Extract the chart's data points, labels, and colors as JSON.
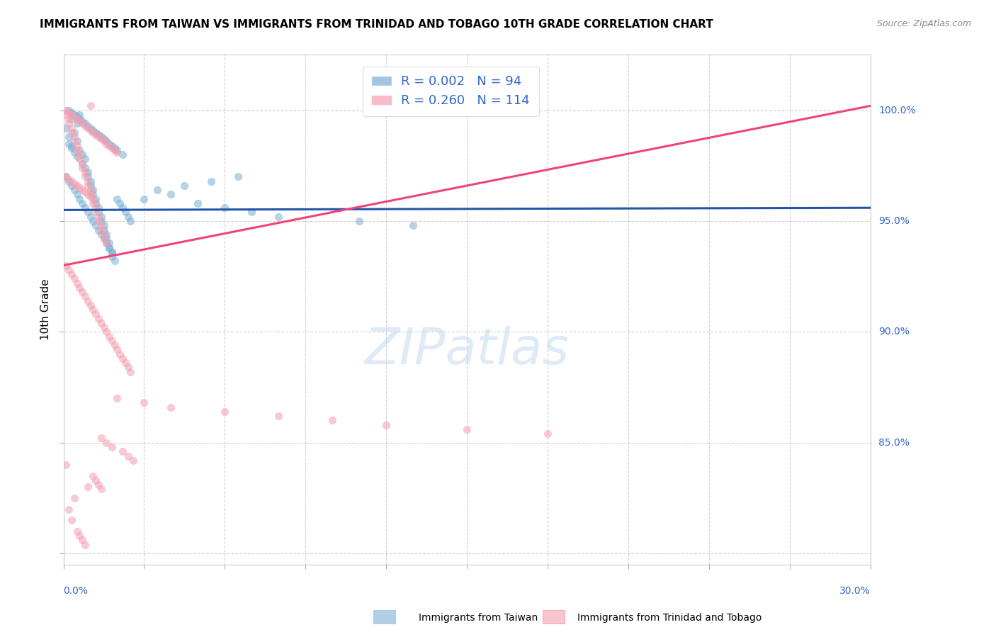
{
  "title": "IMMIGRANTS FROM TAIWAN VS IMMIGRANTS FROM TRINIDAD AND TOBAGO 10TH GRADE CORRELATION CHART",
  "source": "Source: ZipAtlas.com",
  "ylabel": "10th Grade",
  "xlim": [
    0.0,
    0.3
  ],
  "ylim": [
    0.795,
    1.025
  ],
  "taiwan_color": "#7BAFD4",
  "trinidad_color": "#F4A0B0",
  "taiwan_R": 0.002,
  "taiwan_N": 94,
  "trinidad_R": 0.26,
  "trinidad_N": 114,
  "taiwan_line_color": "#2255AA",
  "trinidad_line_color": "#EE4477",
  "watermark": "ZIPatlas",
  "background_color": "#FFFFFF",
  "taiwan_scatter_x": [
    0.001,
    0.002,
    0.003,
    0.003,
    0.004,
    0.005,
    0.005,
    0.006,
    0.006,
    0.007,
    0.007,
    0.008,
    0.008,
    0.009,
    0.009,
    0.01,
    0.01,
    0.011,
    0.011,
    0.012,
    0.012,
    0.013,
    0.013,
    0.014,
    0.014,
    0.015,
    0.015,
    0.016,
    0.016,
    0.017,
    0.017,
    0.018,
    0.018,
    0.019,
    0.02,
    0.021,
    0.022,
    0.023,
    0.024,
    0.025,
    0.002,
    0.003,
    0.004,
    0.005,
    0.006,
    0.007,
    0.008,
    0.009,
    0.01,
    0.011,
    0.012,
    0.013,
    0.014,
    0.015,
    0.016,
    0.017,
    0.018,
    0.019,
    0.02,
    0.022,
    0.001,
    0.002,
    0.003,
    0.004,
    0.005,
    0.006,
    0.007,
    0.008,
    0.009,
    0.01,
    0.011,
    0.012,
    0.013,
    0.014,
    0.015,
    0.016,
    0.017,
    0.018,
    0.03,
    0.04,
    0.05,
    0.06,
    0.07,
    0.08,
    0.035,
    0.045,
    0.055,
    0.065,
    0.11,
    0.13,
    0.002,
    0.003,
    0.004,
    0.005
  ],
  "taiwan_scatter_y": [
    0.992,
    0.988,
    0.996,
    0.984,
    0.99,
    0.986,
    0.994,
    0.982,
    0.998,
    0.98,
    0.976,
    0.978,
    0.974,
    0.972,
    0.97,
    0.968,
    0.966,
    0.964,
    0.962,
    0.96,
    0.958,
    0.956,
    0.954,
    0.952,
    0.95,
    0.948,
    0.946,
    0.944,
    0.942,
    0.94,
    0.938,
    0.936,
    0.934,
    0.932,
    0.96,
    0.958,
    0.956,
    0.954,
    0.952,
    0.95,
    1.0,
    0.999,
    0.998,
    0.997,
    0.996,
    0.995,
    0.994,
    0.993,
    0.992,
    0.991,
    0.99,
    0.989,
    0.988,
    0.987,
    0.986,
    0.985,
    0.984,
    0.983,
    0.982,
    0.98,
    0.97,
    0.968,
    0.966,
    0.964,
    0.962,
    0.96,
    0.958,
    0.956,
    0.954,
    0.952,
    0.95,
    0.948,
    0.946,
    0.944,
    0.942,
    0.94,
    0.938,
    0.936,
    0.96,
    0.962,
    0.958,
    0.956,
    0.954,
    0.952,
    0.964,
    0.966,
    0.968,
    0.97,
    0.95,
    0.948,
    0.985,
    0.983,
    0.981,
    0.979
  ],
  "trinidad_scatter_x": [
    0.001,
    0.002,
    0.002,
    0.003,
    0.003,
    0.004,
    0.004,
    0.005,
    0.005,
    0.006,
    0.006,
    0.007,
    0.007,
    0.008,
    0.008,
    0.009,
    0.009,
    0.01,
    0.01,
    0.011,
    0.011,
    0.012,
    0.012,
    0.013,
    0.013,
    0.014,
    0.014,
    0.015,
    0.015,
    0.016,
    0.001,
    0.002,
    0.003,
    0.004,
    0.005,
    0.006,
    0.007,
    0.008,
    0.009,
    0.01,
    0.011,
    0.012,
    0.013,
    0.014,
    0.015,
    0.016,
    0.017,
    0.018,
    0.019,
    0.02,
    0.001,
    0.002,
    0.003,
    0.004,
    0.005,
    0.006,
    0.007,
    0.008,
    0.009,
    0.01,
    0.001,
    0.002,
    0.003,
    0.004,
    0.005,
    0.006,
    0.007,
    0.008,
    0.009,
    0.01,
    0.011,
    0.012,
    0.013,
    0.014,
    0.015,
    0.016,
    0.017,
    0.018,
    0.019,
    0.02,
    0.021,
    0.022,
    0.023,
    0.024,
    0.025,
    0.02,
    0.03,
    0.04,
    0.06,
    0.08,
    0.1,
    0.12,
    0.15,
    0.18,
    0.014,
    0.016,
    0.018,
    0.022,
    0.024,
    0.026,
    0.001,
    0.002,
    0.003,
    0.004,
    0.005,
    0.006,
    0.007,
    0.008,
    0.009,
    0.01,
    0.011,
    0.012,
    0.013,
    0.014
  ],
  "trinidad_scatter_y": [
    0.998,
    0.996,
    0.994,
    0.992,
    0.99,
    0.988,
    0.986,
    0.984,
    0.982,
    0.98,
    0.978,
    0.976,
    0.974,
    0.972,
    0.97,
    0.968,
    0.966,
    0.964,
    0.962,
    0.96,
    0.958,
    0.956,
    0.954,
    0.952,
    0.95,
    0.948,
    0.946,
    0.944,
    0.942,
    0.94,
    1.0,
    0.999,
    0.998,
    0.997,
    0.996,
    0.995,
    0.994,
    0.993,
    0.992,
    0.991,
    0.99,
    0.989,
    0.988,
    0.987,
    0.986,
    0.985,
    0.984,
    0.983,
    0.982,
    0.981,
    0.97,
    0.969,
    0.968,
    0.967,
    0.966,
    0.965,
    0.964,
    0.963,
    0.962,
    0.961,
    0.93,
    0.928,
    0.926,
    0.924,
    0.922,
    0.92,
    0.918,
    0.916,
    0.914,
    0.912,
    0.91,
    0.908,
    0.906,
    0.904,
    0.902,
    0.9,
    0.898,
    0.896,
    0.894,
    0.892,
    0.89,
    0.888,
    0.886,
    0.884,
    0.882,
    0.87,
    0.868,
    0.866,
    0.864,
    0.862,
    0.86,
    0.858,
    0.856,
    0.854,
    0.852,
    0.85,
    0.848,
    0.846,
    0.844,
    0.842,
    0.84,
    0.82,
    0.815,
    0.825,
    0.81,
    0.808,
    0.806,
    0.804,
    0.83,
    1.002,
    0.835,
    0.833,
    0.831,
    0.829
  ]
}
